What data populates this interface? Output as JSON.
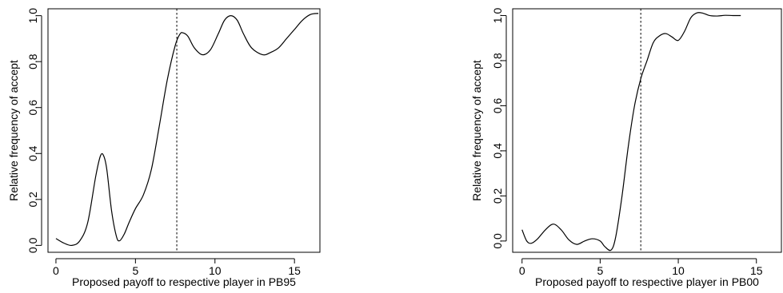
{
  "chart_data": [
    {
      "type": "line",
      "title": "",
      "xlabel": "Proposed payoff to respective player in PB95",
      "ylabel": "Relative frequency of accept",
      "xlim": [
        -0.5,
        16.6
      ],
      "ylim": [
        -0.03,
        1.03
      ],
      "x_ticks": [
        0,
        5,
        10,
        15
      ],
      "y_ticks": [
        0.0,
        0.2,
        0.4,
        0.6,
        0.8,
        1.0
      ],
      "x_tick_labels": [
        "0",
        "5",
        "10",
        "15"
      ],
      "y_tick_labels": [
        "0.0",
        "0.2",
        "0.4",
        "0.6",
        "0.8",
        "1.0"
      ],
      "reference_line_x": 7.6,
      "grid": false,
      "series": [
        {
          "x": [
            0,
            0.5,
            1,
            1.5,
            2,
            2.5,
            2.8,
            3,
            3.2,
            3.5,
            3.8,
            4,
            4.3,
            4.6,
            5,
            5.5,
            6,
            6.5,
            7,
            7.5,
            7.8,
            8,
            8.3,
            8.7,
            9.2,
            9.7,
            10.2,
            10.6,
            11,
            11.4,
            11.8,
            12.3,
            13,
            13.5,
            14,
            14.5,
            15,
            15.5,
            16,
            16.5
          ],
          "y": [
            0.03,
            0.01,
            0.0,
            0.02,
            0.1,
            0.3,
            0.39,
            0.39,
            0.33,
            0.15,
            0.04,
            0.02,
            0.05,
            0.1,
            0.16,
            0.22,
            0.33,
            0.52,
            0.72,
            0.87,
            0.92,
            0.925,
            0.91,
            0.86,
            0.83,
            0.85,
            0.92,
            0.98,
            1.0,
            0.98,
            0.92,
            0.86,
            0.83,
            0.84,
            0.86,
            0.9,
            0.94,
            0.98,
            1.005,
            1.01
          ]
        }
      ]
    },
    {
      "type": "line",
      "title": "",
      "xlabel": "Proposed payoff to respective player in PB00",
      "ylabel": "Relative frequency of accept",
      "xlim": [
        -0.6,
        16.6
      ],
      "ylim": [
        -0.05,
        1.03
      ],
      "x_ticks": [
        0,
        5,
        10,
        15
      ],
      "y_ticks": [
        0.0,
        0.2,
        0.4,
        0.6,
        0.8,
        1.0
      ],
      "x_tick_labels": [
        "0",
        "5",
        "10",
        "15"
      ],
      "y_tick_labels": [
        "0.0",
        "0.2",
        "0.4",
        "0.6",
        "0.8",
        "1.0"
      ],
      "reference_line_x": 7.6,
      "grid": false,
      "series": [
        {
          "x": [
            0,
            0.3,
            0.6,
            1,
            1.5,
            2,
            2.5,
            3,
            3.5,
            4,
            4.5,
            5,
            5.3,
            5.7,
            6,
            6.4,
            6.8,
            7.2,
            7.6,
            8,
            8.4,
            8.8,
            9.2,
            9.6,
            10,
            10.4,
            10.8,
            11.2,
            11.6,
            12,
            12.5,
            13,
            13.5,
            14
          ],
          "y": [
            0.05,
            0.0,
            -0.01,
            0.01,
            0.05,
            0.075,
            0.05,
            0.005,
            -0.015,
            0.0,
            0.01,
            0.0,
            -0.025,
            -0.04,
            0.02,
            0.2,
            0.42,
            0.6,
            0.72,
            0.8,
            0.88,
            0.91,
            0.92,
            0.905,
            0.89,
            0.93,
            0.99,
            1.012,
            1.01,
            1.0,
            0.998,
            1.001,
            1.0,
            1.0
          ]
        }
      ]
    }
  ]
}
